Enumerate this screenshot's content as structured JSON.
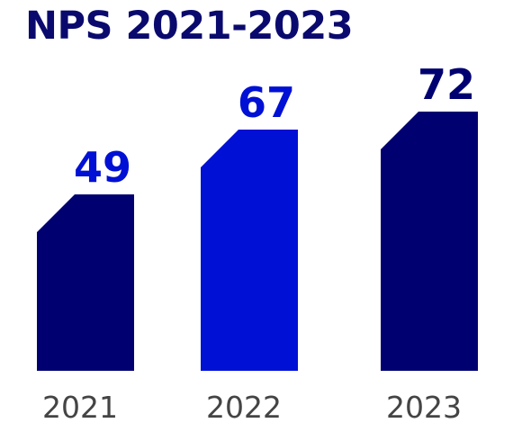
{
  "chart_data": {
    "type": "bar",
    "title": "NPS 2021-2023",
    "categories": [
      "2021",
      "2022",
      "2023"
    ],
    "values": [
      49,
      67,
      72
    ],
    "xlabel": "",
    "ylabel": "",
    "ylim": [
      0,
      80
    ],
    "grid": false,
    "legend": "none",
    "colors": {
      "bars": [
        "#000070",
        "#0010d4",
        "#000070"
      ],
      "value_labels": [
        "#0010d4",
        "#0010d4",
        "#000070"
      ],
      "title": "#0a0a6e",
      "ticks": "#444444"
    }
  }
}
